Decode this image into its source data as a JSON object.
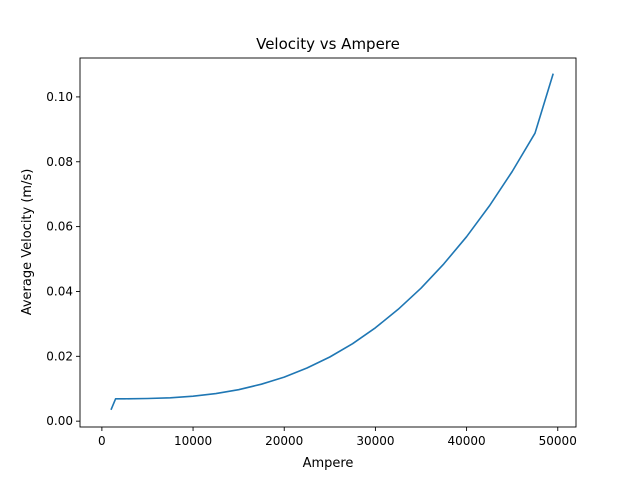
{
  "chart_data": {
    "type": "line",
    "title": "Velocity vs Ampere",
    "xlabel": "Ampere",
    "ylabel": "Average Velocity (m/s)",
    "xlim": [
      -2400,
      52000
    ],
    "ylim": [
      -0.0018,
      0.112
    ],
    "x_ticks": [
      0,
      10000,
      20000,
      30000,
      40000,
      50000
    ],
    "x_tick_labels": [
      "0",
      "10000",
      "20000",
      "30000",
      "40000",
      "50000"
    ],
    "y_ticks": [
      0.0,
      0.02,
      0.04,
      0.06,
      0.08,
      0.1
    ],
    "y_tick_labels": [
      "0.00",
      "0.02",
      "0.04",
      "0.06",
      "0.08",
      "0.10"
    ],
    "grid": false,
    "legend": "none",
    "series": [
      {
        "color": "#1f77b4",
        "x": [
          1000,
          1500,
          2500,
          5000,
          7500,
          10000,
          12500,
          15000,
          17500,
          20000,
          22500,
          25000,
          27500,
          30000,
          32500,
          35000,
          37500,
          40000,
          42500,
          45000,
          47500,
          49500
        ],
        "y": [
          0.0035,
          0.0069,
          0.0069,
          0.007,
          0.0072,
          0.0077,
          0.0085,
          0.0097,
          0.0114,
          0.0136,
          0.0164,
          0.0198,
          0.0239,
          0.0288,
          0.0345,
          0.041,
          0.0485,
          0.0569,
          0.0664,
          0.077,
          0.0888,
          0.1072
        ]
      }
    ]
  }
}
